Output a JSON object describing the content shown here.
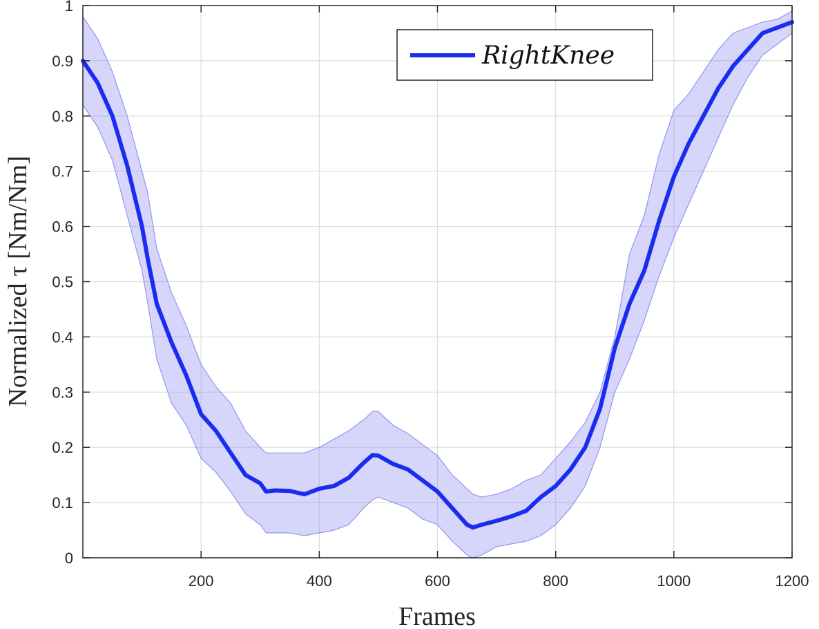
{
  "chart_data": {
    "type": "line",
    "xlabel": "Frames",
    "ylabel": "Normalized τ [Nm/Nm]",
    "xlim": [
      0,
      1200
    ],
    "ylim": [
      0,
      1
    ],
    "xticks": [
      200,
      400,
      600,
      800,
      1000,
      1200
    ],
    "yticks": [
      0,
      0.1,
      0.2,
      0.3,
      0.4,
      0.5,
      0.6,
      0.7,
      0.8,
      0.9,
      1
    ],
    "xtick_labels": [
      "200",
      "400",
      "600",
      "800",
      "1000",
      "1200"
    ],
    "ytick_labels": [
      "0",
      "0.1",
      "0.2",
      "0.3",
      "0.4",
      "0.5",
      "0.6",
      "0.7",
      "0.8",
      "0.9",
      "1"
    ],
    "grid": true,
    "legend_position": "top-right",
    "series": [
      {
        "name": "RightKnee",
        "color": "#1a2cf0",
        "band_color": "#8080ee",
        "x": [
          0,
          25,
          50,
          75,
          100,
          110,
          125,
          150,
          175,
          200,
          225,
          250,
          275,
          300,
          310,
          325,
          350,
          375,
          400,
          425,
          450,
          475,
          490,
          500,
          525,
          550,
          575,
          600,
          625,
          650,
          660,
          675,
          700,
          725,
          750,
          775,
          800,
          825,
          850,
          875,
          900,
          925,
          950,
          975,
          1000,
          1025,
          1050,
          1075,
          1100,
          1125,
          1150,
          1175,
          1200
        ],
        "y": [
          0.9,
          0.86,
          0.8,
          0.71,
          0.6,
          0.54,
          0.46,
          0.39,
          0.33,
          0.26,
          0.23,
          0.19,
          0.15,
          0.135,
          0.12,
          0.122,
          0.121,
          0.115,
          0.125,
          0.13,
          0.145,
          0.172,
          0.186,
          0.185,
          0.17,
          0.16,
          0.14,
          0.12,
          0.09,
          0.06,
          0.055,
          0.06,
          0.067,
          0.075,
          0.085,
          0.11,
          0.13,
          0.16,
          0.2,
          0.27,
          0.38,
          0.46,
          0.52,
          0.61,
          0.69,
          0.75,
          0.8,
          0.85,
          0.89,
          0.92,
          0.95,
          0.96,
          0.97
        ],
        "upper": [
          0.98,
          0.94,
          0.88,
          0.8,
          0.7,
          0.66,
          0.56,
          0.48,
          0.42,
          0.35,
          0.31,
          0.28,
          0.23,
          0.2,
          0.19,
          0.19,
          0.19,
          0.19,
          0.2,
          0.215,
          0.23,
          0.25,
          0.265,
          0.265,
          0.24,
          0.225,
          0.205,
          0.185,
          0.15,
          0.125,
          0.115,
          0.11,
          0.115,
          0.125,
          0.14,
          0.15,
          0.18,
          0.21,
          0.245,
          0.3,
          0.4,
          0.55,
          0.62,
          0.73,
          0.81,
          0.84,
          0.88,
          0.92,
          0.95,
          0.96,
          0.97,
          0.975,
          0.99
        ],
        "lower": [
          0.82,
          0.78,
          0.72,
          0.62,
          0.52,
          0.46,
          0.36,
          0.28,
          0.24,
          0.18,
          0.155,
          0.12,
          0.08,
          0.06,
          0.045,
          0.045,
          0.045,
          0.04,
          0.045,
          0.05,
          0.06,
          0.09,
          0.105,
          0.11,
          0.1,
          0.09,
          0.07,
          0.06,
          0.03,
          0.005,
          0.0,
          0.005,
          0.02,
          0.025,
          0.03,
          0.04,
          0.06,
          0.09,
          0.13,
          0.2,
          0.3,
          0.36,
          0.43,
          0.51,
          0.58,
          0.64,
          0.7,
          0.76,
          0.82,
          0.87,
          0.91,
          0.93,
          0.95
        ]
      }
    ]
  }
}
